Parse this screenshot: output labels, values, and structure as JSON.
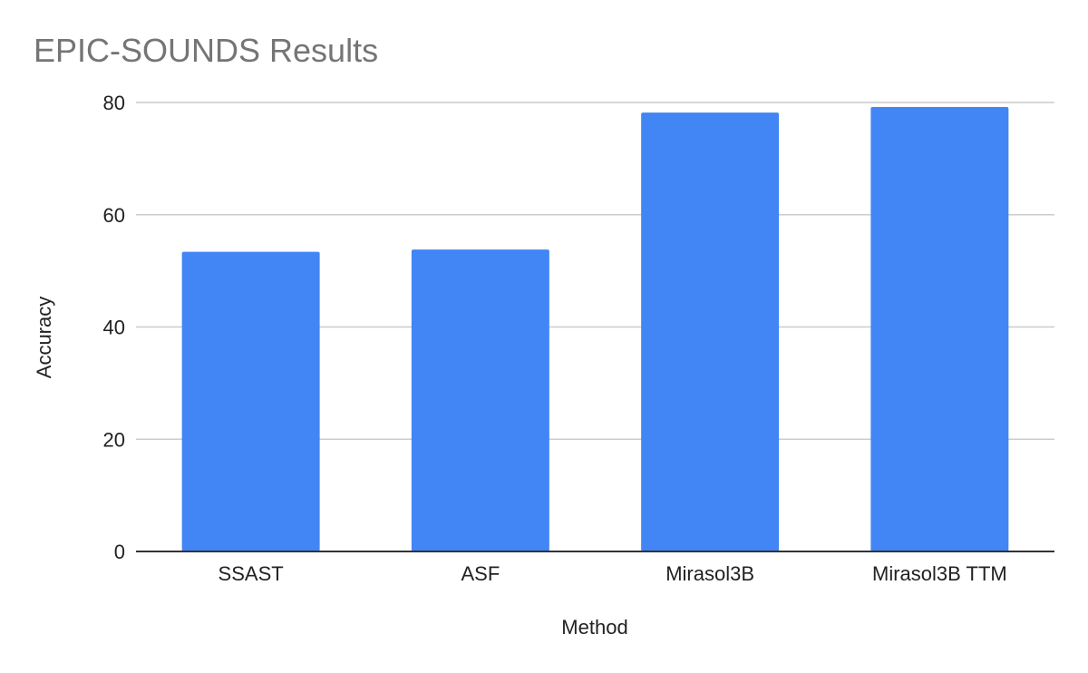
{
  "chart_data": {
    "type": "bar",
    "title": "EPIC-SOUNDS Results",
    "xlabel": "Method",
    "ylabel": "Accuracy",
    "categories": [
      "SSAST",
      "ASF",
      "Mirasol3B",
      "Mirasol3B TTM"
    ],
    "series": [
      {
        "values": [
          53.4,
          53.8,
          78.2,
          79.2
        ],
        "color": "#4285f4"
      }
    ],
    "ylim": [
      0,
      80
    ],
    "yticks": [
      0,
      20,
      40,
      60,
      80
    ],
    "grid": true,
    "legend": "none"
  }
}
